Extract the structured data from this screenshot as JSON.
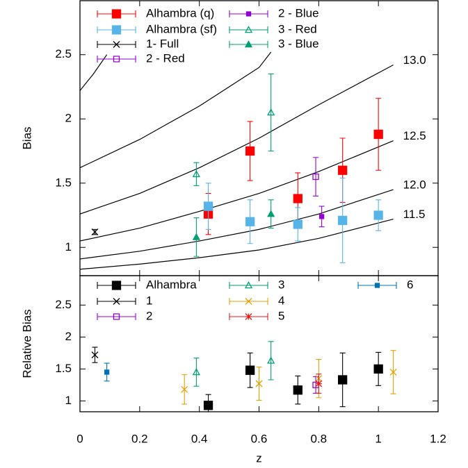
{
  "chart_data": [
    {
      "type": "scatter",
      "ylabel": "Bias",
      "xlim": [
        0,
        1.2
      ],
      "ylim": [
        0.78,
        2.92
      ],
      "xticks": [
        0,
        0.2,
        0.4,
        0.6,
        0.8,
        1,
        1.2
      ],
      "yticks": [
        1,
        1.5,
        2,
        2.5
      ],
      "series": [
        {
          "name": "Alhambra (q)",
          "color": "#ff0000",
          "marker": "square",
          "x": [
            0.43,
            0.57,
            0.73,
            0.88,
            1.0
          ],
          "values": [
            1.26,
            1.75,
            1.38,
            1.6,
            1.88
          ],
          "err": [
            0.16,
            0.23,
            0.2,
            0.25,
            0.28
          ]
        },
        {
          "name": "Alhambra (sf)",
          "color": "#56b4e9",
          "marker": "square",
          "x": [
            0.43,
            0.57,
            0.73,
            0.88,
            1.0
          ],
          "values": [
            1.32,
            1.2,
            1.18,
            1.21,
            1.25
          ],
          "err": [
            0.18,
            0.17,
            0.13,
            0.33,
            0.12
          ]
        },
        {
          "name": "1- Full",
          "color": "#000000",
          "marker": "x",
          "x": [
            0.05
          ],
          "values": [
            1.12
          ],
          "err": [
            0.02
          ]
        },
        {
          "name": "2 - Red",
          "color": "#9400d3",
          "marker": "open-square",
          "x": [
            0.79
          ],
          "values": [
            1.55
          ],
          "err": [
            0.15
          ]
        },
        {
          "name": "2 - Blue",
          "color": "#9400d3",
          "marker": "small-square",
          "x": [
            0.81
          ],
          "values": [
            1.24
          ],
          "err": [
            0.08
          ]
        },
        {
          "name": "3 - Red",
          "color": "#009e73",
          "marker": "open-triangle",
          "x": [
            0.39,
            0.64
          ],
          "values": [
            1.57,
            2.05
          ],
          "err": [
            0.09,
            0.3
          ]
        },
        {
          "name": "3 - Blue",
          "color": "#009e73",
          "marker": "triangle",
          "x": [
            0.39,
            0.64
          ],
          "values": [
            1.08,
            1.26
          ],
          "err": [
            0.15,
            0.11
          ]
        }
      ],
      "curve_color": "#000000",
      "curves": [
        {
          "name": "13.0",
          "x": [
            0,
            0.2,
            0.4,
            0.6,
            0.8,
            1.05
          ],
          "values": [
            1.26,
            1.42,
            1.62,
            1.85,
            2.11,
            2.42
          ]
        },
        {
          "name": "12.5",
          "x": [
            0,
            0.2,
            0.4,
            0.6,
            0.8,
            1.05
          ],
          "values": [
            1.05,
            1.15,
            1.28,
            1.42,
            1.59,
            1.83
          ]
        },
        {
          "name": "12.0",
          "x": [
            0,
            0.2,
            0.4,
            0.6,
            0.8,
            1.05
          ],
          "values": [
            0.91,
            0.97,
            1.05,
            1.14,
            1.26,
            1.45
          ]
        },
        {
          "name": "11.5",
          "x": [
            0,
            0.2,
            0.4,
            0.6,
            0.8,
            1.05
          ],
          "values": [
            0.83,
            0.87,
            0.92,
            0.98,
            1.07,
            1.22
          ]
        },
        {
          "x": [
            0,
            0.2,
            0.4,
            0.6,
            0.64
          ],
          "values": [
            1.62,
            1.84,
            2.1,
            2.4,
            2.52
          ]
        },
        {
          "x": [
            0,
            0.045,
            0.09
          ],
          "values": [
            2.22,
            2.35,
            2.5
          ]
        }
      ]
    },
    {
      "type": "scatter",
      "ylabel": "Relative Bias",
      "xlabel": "z",
      "xlim": [
        0,
        1.2
      ],
      "ylim": [
        0.83,
        2.96
      ],
      "xticks": [
        0,
        0.2,
        0.4,
        0.6,
        0.8,
        1,
        1.2
      ],
      "yticks": [
        1,
        1.5,
        2,
        2.5
      ],
      "series": [
        {
          "name": "Alhambra",
          "color": "#000000",
          "marker": "square",
          "x": [
            0.43,
            0.57,
            0.73,
            0.88,
            1.0
          ],
          "values": [
            0.93,
            1.48,
            1.17,
            1.33,
            1.5
          ],
          "err": [
            0.17,
            0.27,
            0.22,
            0.42,
            0.26
          ]
        },
        {
          "name": "1",
          "color": "#000000",
          "marker": "x",
          "x": [
            0.05
          ],
          "values": [
            1.72
          ],
          "err": [
            0.12
          ]
        },
        {
          "name": "2",
          "color": "#9400d3",
          "marker": "open-square",
          "x": [
            0.79
          ],
          "values": [
            1.25
          ],
          "err": [
            0.13
          ]
        },
        {
          "name": "3",
          "color": "#009e73",
          "marker": "open-triangle",
          "x": [
            0.39,
            0.64
          ],
          "values": [
            1.45,
            1.63
          ],
          "err": [
            0.22,
            0.3
          ]
        },
        {
          "name": "4",
          "color": "#e69f00",
          "marker": "x",
          "x": [
            0.35,
            0.6,
            0.8,
            1.05
          ],
          "values": [
            1.18,
            1.27,
            1.35,
            1.45
          ],
          "err": [
            0.23,
            0.26,
            0.3,
            0.34
          ]
        },
        {
          "name": "5",
          "color": "#e41a1c",
          "marker": "star",
          "x": [
            0.8
          ],
          "values": [
            1.27
          ],
          "err": [
            0.15
          ]
        },
        {
          "name": "6",
          "color": "#0072b2",
          "marker": "small-square",
          "x": [
            0.09
          ],
          "values": [
            1.45
          ],
          "err": [
            0.14
          ]
        }
      ]
    }
  ]
}
